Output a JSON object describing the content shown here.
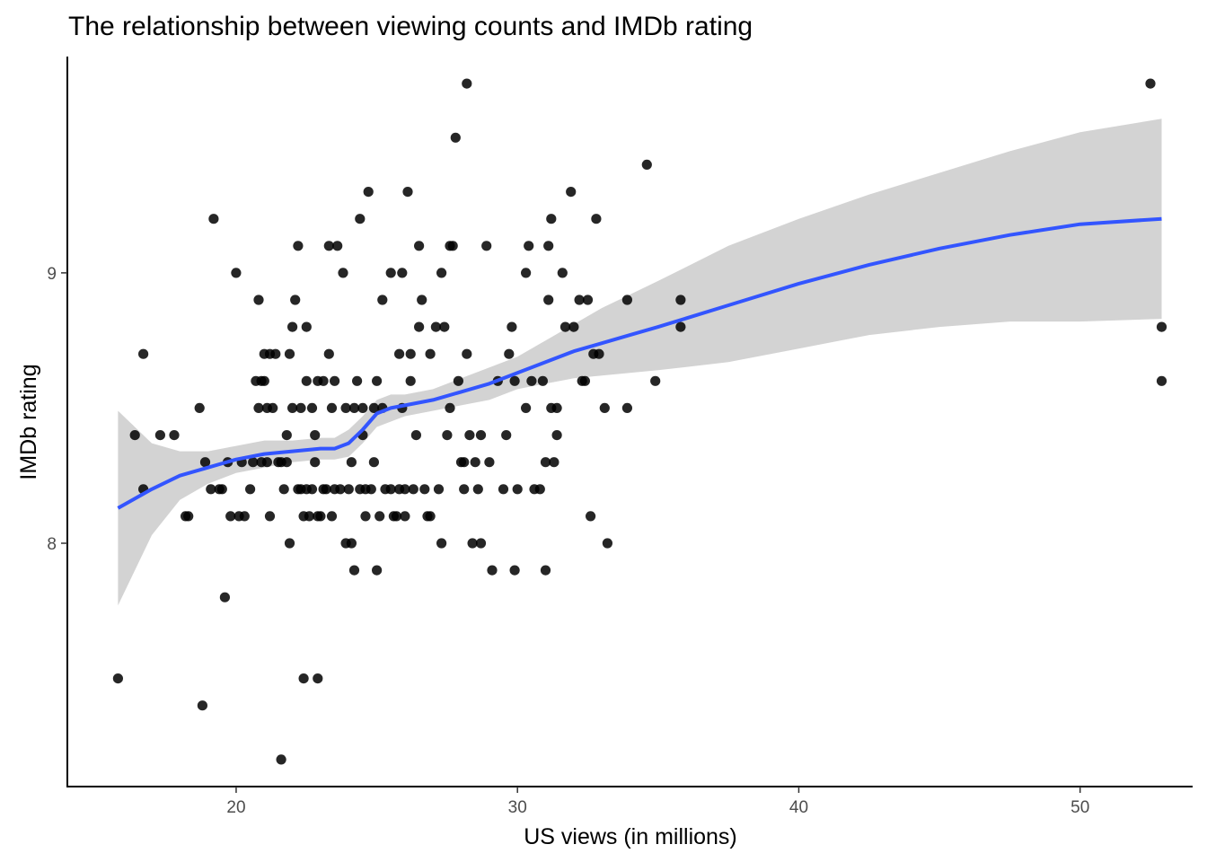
{
  "chart_data": {
    "type": "scatter",
    "title": "The relationship between viewing counts and IMDb rating",
    "xlabel": "US views (in millions)",
    "ylabel": "IMDb rating",
    "xlim": [
      14,
      54
    ],
    "ylim": [
      7.1,
      9.8
    ],
    "x_ticks": [
      20,
      30,
      40,
      50
    ],
    "y_ticks": [
      8,
      9
    ],
    "grid": false,
    "legend": "none",
    "colors": {
      "points": "#000000",
      "smooth_line": "#3355ff",
      "confidence_band": "#d3d3d3"
    },
    "points": [
      [
        15.8,
        7.5
      ],
      [
        16.4,
        8.4
      ],
      [
        16.7,
        8.7
      ],
      [
        16.7,
        8.2
      ],
      [
        17.3,
        8.4
      ],
      [
        17.8,
        8.4
      ],
      [
        18.2,
        8.1
      ],
      [
        18.3,
        8.1
      ],
      [
        18.7,
        8.5
      ],
      [
        18.8,
        7.4
      ],
      [
        18.9,
        8.3
      ],
      [
        19.1,
        8.2
      ],
      [
        19.2,
        9.2
      ],
      [
        19.4,
        8.2
      ],
      [
        19.5,
        8.2
      ],
      [
        19.6,
        7.8
      ],
      [
        19.7,
        8.3
      ],
      [
        19.8,
        8.1
      ],
      [
        20.0,
        9.0
      ],
      [
        20.1,
        8.1
      ],
      [
        20.2,
        8.3
      ],
      [
        20.3,
        8.1
      ],
      [
        20.5,
        8.2
      ],
      [
        20.6,
        8.3
      ],
      [
        20.7,
        8.6
      ],
      [
        20.8,
        8.9
      ],
      [
        20.8,
        8.5
      ],
      [
        20.9,
        8.3
      ],
      [
        20.9,
        8.6
      ],
      [
        21.0,
        8.7
      ],
      [
        21.0,
        8.6
      ],
      [
        21.1,
        8.5
      ],
      [
        21.1,
        8.3
      ],
      [
        21.2,
        8.1
      ],
      [
        21.2,
        8.7
      ],
      [
        21.3,
        8.5
      ],
      [
        21.4,
        8.7
      ],
      [
        21.5,
        8.3
      ],
      [
        21.6,
        8.3
      ],
      [
        21.6,
        7.2
      ],
      [
        21.7,
        8.2
      ],
      [
        21.8,
        8.3
      ],
      [
        21.8,
        8.4
      ],
      [
        21.9,
        8.7
      ],
      [
        21.9,
        8.0
      ],
      [
        22.0,
        8.8
      ],
      [
        22.0,
        8.5
      ],
      [
        22.1,
        8.9
      ],
      [
        22.2,
        8.2
      ],
      [
        22.2,
        9.1
      ],
      [
        22.3,
        8.5
      ],
      [
        22.3,
        8.2
      ],
      [
        22.4,
        8.1
      ],
      [
        22.4,
        7.5
      ],
      [
        22.5,
        8.2
      ],
      [
        22.5,
        8.6
      ],
      [
        22.5,
        8.8
      ],
      [
        22.6,
        8.1
      ],
      [
        22.7,
        8.2
      ],
      [
        22.7,
        8.5
      ],
      [
        22.8,
        8.3
      ],
      [
        22.8,
        8.4
      ],
      [
        22.9,
        8.6
      ],
      [
        22.9,
        8.1
      ],
      [
        22.9,
        7.5
      ],
      [
        23.0,
        8.1
      ],
      [
        23.1,
        8.6
      ],
      [
        23.1,
        8.2
      ],
      [
        23.2,
        8.2
      ],
      [
        23.3,
        9.1
      ],
      [
        23.3,
        8.7
      ],
      [
        23.4,
        8.5
      ],
      [
        23.4,
        8.1
      ],
      [
        23.5,
        8.6
      ],
      [
        23.5,
        8.2
      ],
      [
        23.6,
        9.1
      ],
      [
        23.7,
        8.2
      ],
      [
        23.8,
        9.0
      ],
      [
        23.9,
        8.5
      ],
      [
        23.9,
        8.0
      ],
      [
        24.0,
        8.2
      ],
      [
        24.1,
        8.3
      ],
      [
        24.1,
        8.0
      ],
      [
        24.2,
        8.5
      ],
      [
        24.2,
        7.9
      ],
      [
        24.3,
        8.6
      ],
      [
        24.4,
        9.2
      ],
      [
        24.4,
        8.2
      ],
      [
        24.5,
        8.4
      ],
      [
        24.5,
        8.5
      ],
      [
        24.6,
        8.2
      ],
      [
        24.6,
        8.1
      ],
      [
        24.7,
        9.3
      ],
      [
        24.8,
        8.2
      ],
      [
        24.9,
        8.5
      ],
      [
        24.9,
        8.3
      ],
      [
        25.0,
        8.6
      ],
      [
        25.0,
        7.9
      ],
      [
        25.1,
        8.1
      ],
      [
        25.2,
        8.5
      ],
      [
        25.2,
        8.9
      ],
      [
        25.3,
        8.2
      ],
      [
        25.5,
        9.0
      ],
      [
        25.5,
        8.2
      ],
      [
        25.6,
        8.1
      ],
      [
        25.7,
        8.1
      ],
      [
        25.8,
        8.2
      ],
      [
        25.8,
        8.7
      ],
      [
        25.9,
        9.0
      ],
      [
        25.9,
        8.5
      ],
      [
        26.0,
        8.1
      ],
      [
        26.0,
        8.2
      ],
      [
        26.1,
        9.3
      ],
      [
        26.2,
        8.7
      ],
      [
        26.2,
        8.6
      ],
      [
        26.3,
        8.2
      ],
      [
        26.4,
        8.4
      ],
      [
        26.5,
        8.8
      ],
      [
        26.5,
        9.1
      ],
      [
        26.6,
        8.9
      ],
      [
        26.7,
        8.2
      ],
      [
        26.8,
        8.1
      ],
      [
        26.9,
        8.1
      ],
      [
        26.9,
        8.7
      ],
      [
        27.1,
        8.8
      ],
      [
        27.2,
        8.2
      ],
      [
        27.3,
        8.0
      ],
      [
        27.3,
        9.0
      ],
      [
        27.4,
        8.8
      ],
      [
        27.5,
        8.4
      ],
      [
        27.6,
        9.1
      ],
      [
        27.6,
        8.5
      ],
      [
        27.7,
        9.1
      ],
      [
        27.8,
        9.5
      ],
      [
        27.9,
        8.6
      ],
      [
        28.0,
        8.3
      ],
      [
        28.1,
        8.2
      ],
      [
        28.1,
        8.3
      ],
      [
        28.2,
        9.7
      ],
      [
        28.2,
        8.7
      ],
      [
        28.3,
        8.4
      ],
      [
        28.4,
        8.0
      ],
      [
        28.5,
        8.3
      ],
      [
        28.6,
        8.2
      ],
      [
        28.7,
        8.4
      ],
      [
        28.7,
        8.0
      ],
      [
        28.9,
        9.1
      ],
      [
        29.0,
        8.3
      ],
      [
        29.1,
        7.9
      ],
      [
        29.3,
        8.6
      ],
      [
        29.5,
        8.2
      ],
      [
        29.6,
        8.4
      ],
      [
        29.7,
        8.7
      ],
      [
        29.8,
        8.8
      ],
      [
        29.9,
        7.9
      ],
      [
        29.9,
        8.6
      ],
      [
        30.0,
        8.2
      ],
      [
        30.3,
        9.0
      ],
      [
        30.3,
        8.5
      ],
      [
        30.4,
        9.1
      ],
      [
        30.5,
        8.6
      ],
      [
        30.6,
        8.2
      ],
      [
        30.8,
        8.2
      ],
      [
        30.9,
        8.6
      ],
      [
        31.0,
        8.3
      ],
      [
        31.0,
        7.9
      ],
      [
        31.1,
        9.1
      ],
      [
        31.1,
        8.9
      ],
      [
        31.2,
        9.2
      ],
      [
        31.2,
        8.5
      ],
      [
        31.3,
        8.3
      ],
      [
        31.4,
        8.4
      ],
      [
        31.4,
        8.5
      ],
      [
        31.6,
        9.0
      ],
      [
        31.7,
        8.8
      ],
      [
        31.9,
        9.3
      ],
      [
        32.0,
        8.8
      ],
      [
        32.2,
        8.9
      ],
      [
        32.3,
        8.6
      ],
      [
        32.4,
        8.6
      ],
      [
        32.5,
        8.9
      ],
      [
        32.6,
        8.1
      ],
      [
        32.7,
        8.7
      ],
      [
        32.8,
        9.2
      ],
      [
        32.9,
        8.7
      ],
      [
        33.1,
        8.5
      ],
      [
        33.2,
        8.0
      ],
      [
        33.9,
        8.9
      ],
      [
        33.9,
        8.5
      ],
      [
        34.6,
        9.4
      ],
      [
        34.9,
        8.6
      ],
      [
        35.8,
        8.9
      ],
      [
        35.8,
        8.8
      ],
      [
        52.5,
        9.7
      ],
      [
        52.9,
        8.8
      ],
      [
        52.9,
        8.6
      ]
    ],
    "smooth": {
      "method": "loess",
      "x": [
        15.8,
        17,
        18,
        19,
        20,
        21,
        22,
        23,
        23.5,
        24,
        24.5,
        25,
        25.5,
        26,
        27,
        28,
        29,
        30,
        31,
        32,
        33,
        34,
        35,
        37.5,
        40,
        42.5,
        45,
        47.5,
        50,
        52.9
      ],
      "y": [
        8.13,
        8.2,
        8.25,
        8.28,
        8.31,
        8.33,
        8.34,
        8.35,
        8.35,
        8.37,
        8.42,
        8.48,
        8.5,
        8.51,
        8.53,
        8.56,
        8.59,
        8.63,
        8.67,
        8.71,
        8.74,
        8.77,
        8.8,
        8.88,
        8.96,
        9.03,
        9.09,
        9.14,
        9.18,
        9.2
      ],
      "lower": [
        7.77,
        8.03,
        8.16,
        8.22,
        8.26,
        8.28,
        8.3,
        8.31,
        8.31,
        8.32,
        8.37,
        8.43,
        8.45,
        8.47,
        8.49,
        8.51,
        8.53,
        8.57,
        8.59,
        8.61,
        8.62,
        8.63,
        8.64,
        8.67,
        8.72,
        8.77,
        8.8,
        8.82,
        8.82,
        8.83
      ],
      "upper": [
        8.49,
        8.37,
        8.34,
        8.34,
        8.36,
        8.38,
        8.38,
        8.39,
        8.39,
        8.42,
        8.47,
        8.53,
        8.55,
        8.55,
        8.57,
        8.61,
        8.65,
        8.69,
        8.75,
        8.81,
        8.87,
        8.92,
        8.97,
        9.1,
        9.2,
        9.29,
        9.37,
        9.45,
        9.52,
        9.57
      ]
    }
  }
}
